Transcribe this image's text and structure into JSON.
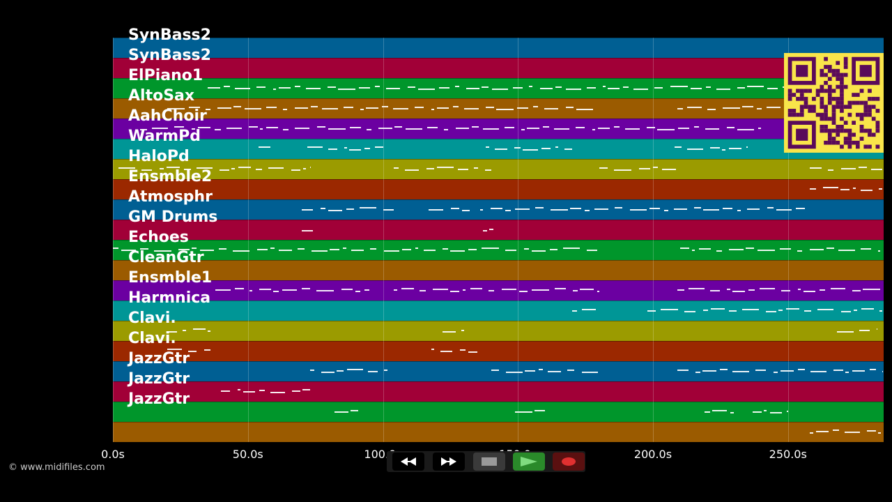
{
  "copyright": "© www.midifiles.com",
  "colors": {
    "palette": [
      "#005f93",
      "#a10037",
      "#00962b",
      "#9b5b00",
      "#6b00a1",
      "#009696",
      "#9b9b00",
      "#9b2800"
    ],
    "qr_bg": "#f9e54a",
    "qr_fg": "#5a0a5a"
  },
  "timeline": {
    "unit": "s",
    "max_seconds": 285,
    "tick_labels": [
      "0.0s",
      "50.0s",
      "100.0s",
      "150.0s",
      "200.0s",
      "250.0s"
    ],
    "tick_values": [
      0,
      50,
      100,
      150,
      200,
      250
    ]
  },
  "tracks": [
    {
      "name": "SynBass2",
      "notes": []
    },
    {
      "name": "SynBass2",
      "notes": []
    },
    {
      "name": "ElPiano1",
      "notes": [
        [
          35,
          250
        ]
      ]
    },
    {
      "name": "AltoSax",
      "notes": [
        [
          20,
          178
        ],
        [
          209,
          250
        ]
      ]
    },
    {
      "name": "AahChoir",
      "notes": [
        [
          10,
          240
        ]
      ]
    },
    {
      "name": "WarmPd",
      "notes": [
        [
          54,
          60
        ],
        [
          72,
          100
        ],
        [
          138,
          170
        ],
        [
          208,
          235
        ]
      ]
    },
    {
      "name": "HaloPd",
      "notes": [
        [
          2,
          73
        ],
        [
          104,
          140
        ],
        [
          180,
          210
        ],
        [
          258,
          285
        ]
      ]
    },
    {
      "name": "Ensmble2",
      "notes": [
        [
          258,
          285
        ]
      ]
    },
    {
      "name": "Atmosphr",
      "notes": [
        [
          70,
          104
        ],
        [
          117,
          132
        ],
        [
          136,
          258
        ]
      ]
    },
    {
      "name": "GM Drums",
      "notes": [
        [
          70,
          74
        ],
        [
          137,
          141
        ]
      ]
    },
    {
      "name": "Echoes",
      "notes": [
        [
          0,
          180
        ],
        [
          210,
          284
        ]
      ]
    },
    {
      "name": "CleanGtr",
      "notes": []
    },
    {
      "name": "Ensmble1",
      "notes": [
        [
          38,
          95
        ],
        [
          104,
          180
        ],
        [
          209,
          285
        ]
      ]
    },
    {
      "name": "Harmnica",
      "notes": [
        [
          170,
          179
        ],
        [
          198,
          285
        ]
      ]
    },
    {
      "name": "Clavi.",
      "notes": [
        [
          20,
          36
        ],
        [
          122,
          130
        ],
        [
          268,
          283
        ]
      ]
    },
    {
      "name": "Clavi.",
      "notes": [
        [
          20,
          36
        ],
        [
          118,
          135
        ]
      ]
    },
    {
      "name": "JazzGtr",
      "notes": [
        [
          73,
          104
        ],
        [
          140,
          180
        ],
        [
          209,
          285
        ]
      ]
    },
    {
      "name": "JazzGtr",
      "notes": [
        [
          40,
          73
        ]
      ]
    },
    {
      "name": "JazzGtr",
      "notes": [
        [
          82,
          92
        ],
        [
          149,
          160
        ],
        [
          219,
          230
        ],
        [
          237,
          250
        ]
      ]
    },
    {
      "name": "",
      "notes": [
        [
          258,
          285
        ]
      ]
    }
  ],
  "transport": {
    "rewind": "rewind-icon",
    "fast_forward": "fast-forward-icon",
    "stop": "stop-icon",
    "play": "play-icon",
    "record": "record-icon"
  }
}
